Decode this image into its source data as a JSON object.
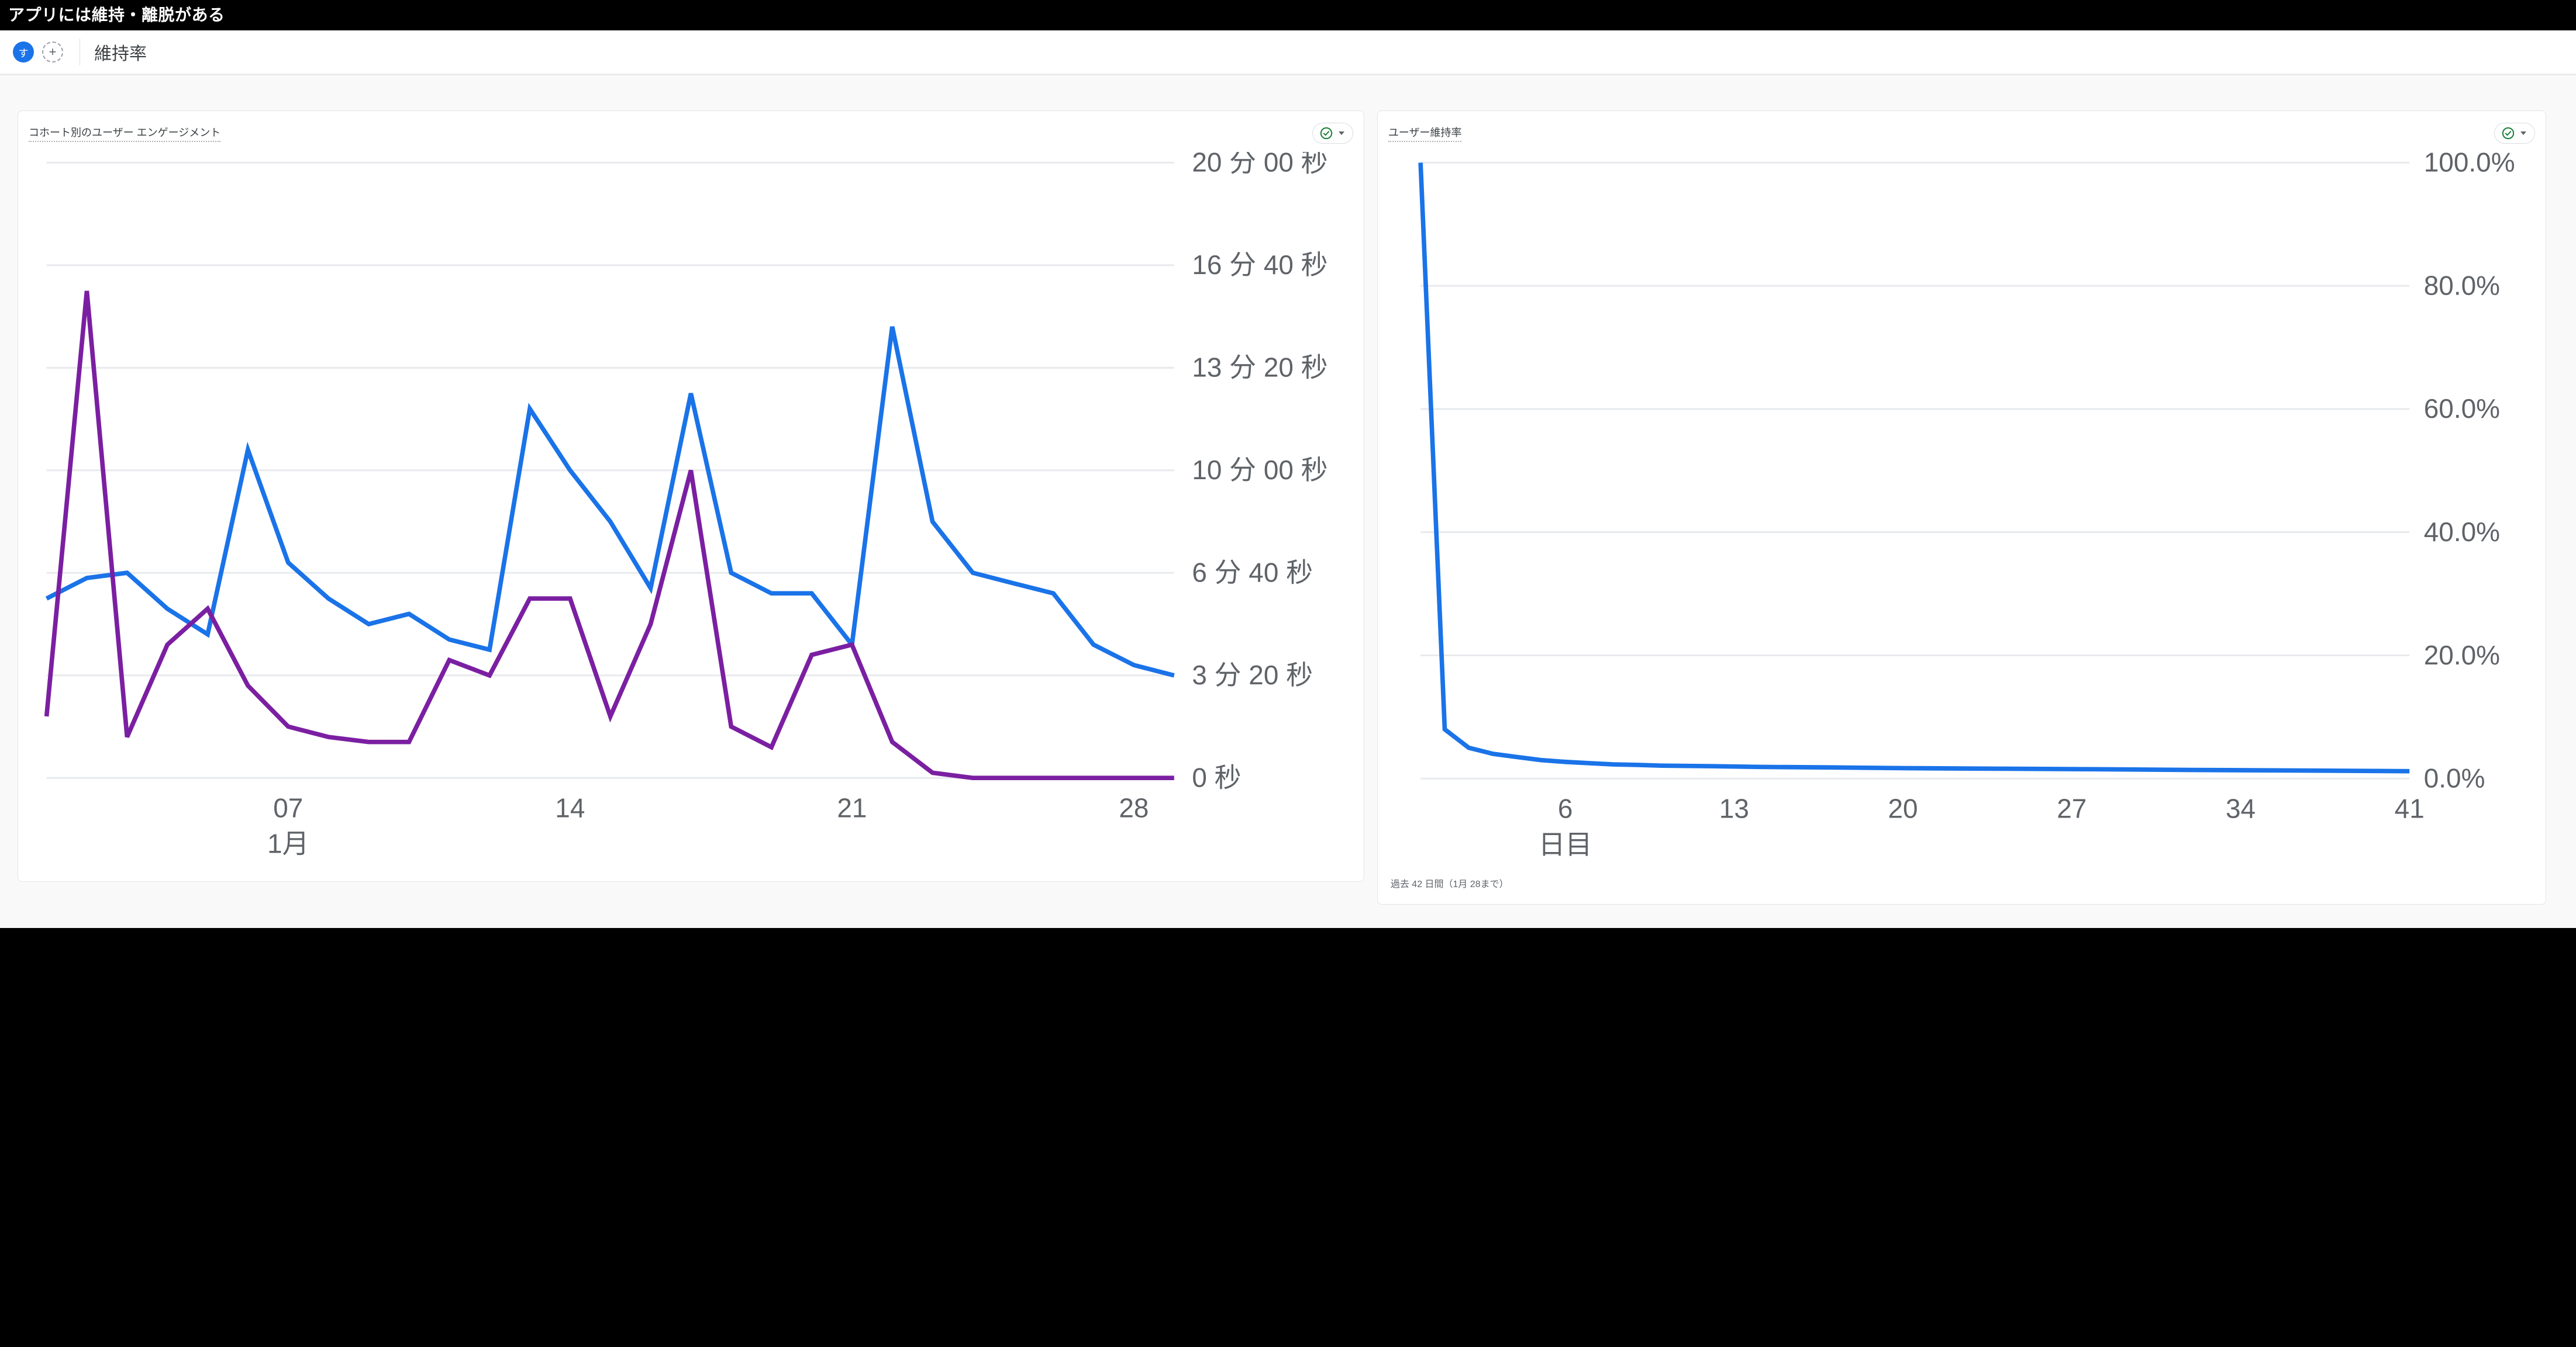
{
  "overlay": {
    "heading": "アプリには維持・離脱がある"
  },
  "topbar": {
    "chip_label": "す",
    "add_label": "+",
    "title": "維持率"
  },
  "card_engagement": {
    "title": "コホート別のユーザー エンゲージメント",
    "status": "ok",
    "chart": {
      "type": "line",
      "x_count": 29,
      "y_max_seconds": 1200,
      "y_ticks_seconds": [
        0,
        200,
        400,
        600,
        800,
        1000,
        1200
      ],
      "y_tick_labels": [
        "0 秒",
        "3 分 20 秒",
        "6 分 40 秒",
        "10 分 00 秒",
        "13 分 20 秒",
        "16 分 40 秒",
        "20 分 00 秒"
      ],
      "x_ticks_index": [
        6,
        13,
        20,
        27
      ],
      "x_tick_labels": [
        "07",
        "14",
        "21",
        "28"
      ],
      "x_axis_sub_label": "1月",
      "x_axis_sub_label_at": 6,
      "series": [
        {
          "name": "series-blue",
          "color": "#1a73e8",
          "values": [
            350,
            390,
            400,
            330,
            280,
            640,
            420,
            350,
            300,
            320,
            270,
            250,
            720,
            600,
            500,
            370,
            750,
            400,
            360,
            360,
            260,
            880,
            500,
            400,
            380,
            360,
            260,
            220,
            200
          ]
        },
        {
          "name": "series-purple",
          "color": "#7b1fa2",
          "values": [
            120,
            950,
            80,
            260,
            330,
            180,
            100,
            80,
            70,
            70,
            230,
            200,
            350,
            350,
            120,
            300,
            600,
            100,
            60,
            240,
            260,
            70,
            10,
            0,
            0,
            0,
            0,
            0,
            0
          ]
        }
      ],
      "grid_color": "#e8eaed",
      "background_color": "#ffffff"
    }
  },
  "card_retention": {
    "title": "ユーザー維持率",
    "status": "ok",
    "footnote": "過去 42 日間（1月 28まで）",
    "chart": {
      "type": "line",
      "x_max": 41,
      "y_max": 100,
      "y_ticks": [
        0,
        20,
        40,
        60,
        80,
        100
      ],
      "y_tick_labels": [
        "0.0%",
        "20.0%",
        "40.0%",
        "60.0%",
        "80.0%",
        "100.0%"
      ],
      "x_ticks": [
        6,
        13,
        20,
        27,
        34,
        41
      ],
      "x_tick_labels": [
        "6",
        "13",
        "20",
        "27",
        "34",
        "41"
      ],
      "x_axis_sub_label": "日目",
      "x_axis_sub_label_at": 6,
      "series": [
        {
          "name": "retention",
          "color": "#1a73e8",
          "points": [
            [
              0,
              100
            ],
            [
              1,
              8
            ],
            [
              2,
              5
            ],
            [
              3,
              4
            ],
            [
              4,
              3.5
            ],
            [
              5,
              3
            ],
            [
              6,
              2.7
            ],
            [
              7,
              2.5
            ],
            [
              8,
              2.3
            ],
            [
              9,
              2.2
            ],
            [
              10,
              2.1
            ],
            [
              12,
              2.0
            ],
            [
              14,
              1.9
            ],
            [
              17,
              1.8
            ],
            [
              20,
              1.7
            ],
            [
              24,
              1.6
            ],
            [
              28,
              1.5
            ],
            [
              32,
              1.4
            ],
            [
              36,
              1.3
            ],
            [
              41,
              1.2
            ]
          ]
        }
      ],
      "grid_color": "#e8eaed",
      "background_color": "#ffffff"
    }
  },
  "colors": {
    "text": "#3c4043",
    "muted": "#5f6368",
    "accent": "#1a73e8",
    "ok_green": "#188038",
    "border": "#dadce0"
  }
}
